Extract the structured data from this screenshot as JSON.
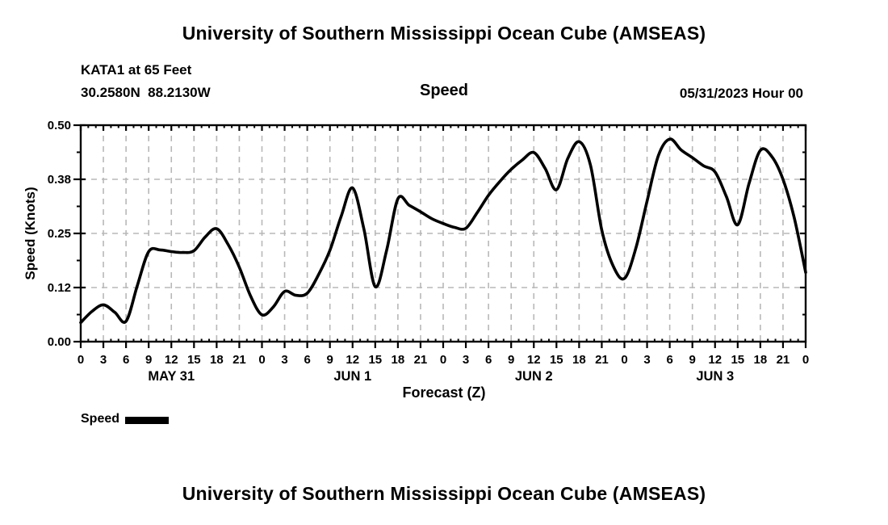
{
  "page": {
    "top_title": "University of Southern Mississippi Ocean Cube (AMSEAS)",
    "bottom_title": "University of Southern Mississippi Ocean Cube (AMSEAS)"
  },
  "header": {
    "station": "KATA1 at 65 Feet",
    "coordinates": "30.2580N  88.2130W",
    "plot_title": "Speed",
    "run_datetime": "05/31/2023 Hour 00"
  },
  "legend": {
    "label": "Speed",
    "swatch_color": "#000000"
  },
  "chart_data": {
    "type": "line",
    "title": "Speed",
    "xlabel": "Forecast (Z)",
    "ylabel": "Speed (Knots)",
    "ylim": [
      0.0,
      0.5
    ],
    "xlim_hours": [
      0,
      96
    ],
    "grid": true,
    "grid_color": "#b8b8b8",
    "line_color": "#000000",
    "frame_color": "#000000",
    "y_ticks": [
      {
        "value": 0.0,
        "label": "0.00"
      },
      {
        "value": 0.125,
        "label": "0.12"
      },
      {
        "value": 0.25,
        "label": "0.25"
      },
      {
        "value": 0.375,
        "label": "0.38"
      },
      {
        "value": 0.5,
        "label": "0.50"
      }
    ],
    "y_minor_step": 0.0625,
    "x_tick_step_hours": 3,
    "x_minor_step_hours": 1,
    "x_tick_labels": [
      "0",
      "3",
      "6",
      "9",
      "12",
      "15",
      "18",
      "21",
      "0",
      "3",
      "6",
      "9",
      "12",
      "15",
      "18",
      "21",
      "0",
      "3",
      "6",
      "9",
      "12",
      "15",
      "18",
      "21",
      "0",
      "3",
      "6",
      "9",
      "12",
      "15",
      "18",
      "21",
      "0"
    ],
    "day_labels": [
      {
        "label": "MAY 31",
        "center_hour": 12
      },
      {
        "label": "JUN 1",
        "center_hour": 36
      },
      {
        "label": "JUN 2",
        "center_hour": 60
      },
      {
        "label": "JUN 3",
        "center_hour": 84
      }
    ],
    "legend_position": "bottom-left",
    "series": [
      {
        "name": "Speed",
        "x_hours": [
          0,
          1.5,
          3,
          4.5,
          6,
          7.5,
          9,
          10.5,
          12,
          13.5,
          15,
          16.5,
          18,
          19.5,
          21,
          22.5,
          24,
          25.5,
          27,
          28.5,
          30,
          31.5,
          33,
          34.5,
          36,
          37.5,
          39,
          40.5,
          42,
          43.5,
          45,
          46.5,
          48,
          49.5,
          51,
          52.5,
          54,
          55.5,
          57,
          58.5,
          60,
          61.5,
          63,
          64.5,
          66,
          67.5,
          69,
          70.5,
          72,
          73.5,
          75,
          76.5,
          78,
          79.5,
          81,
          82.5,
          84,
          85.5,
          87,
          88.5,
          90,
          91.5,
          93,
          94.5,
          96
        ],
        "values": [
          0.044,
          0.07,
          0.085,
          0.068,
          0.047,
          0.13,
          0.208,
          0.212,
          0.208,
          0.206,
          0.21,
          0.242,
          0.261,
          0.225,
          0.172,
          0.105,
          0.062,
          0.08,
          0.116,
          0.107,
          0.112,
          0.155,
          0.211,
          0.29,
          0.355,
          0.26,
          0.127,
          0.21,
          0.33,
          0.315,
          0.3,
          0.284,
          0.273,
          0.264,
          0.262,
          0.298,
          0.338,
          0.37,
          0.398,
          0.42,
          0.437,
          0.4,
          0.351,
          0.423,
          0.462,
          0.408,
          0.258,
          0.175,
          0.146,
          0.215,
          0.325,
          0.43,
          0.468,
          0.443,
          0.425,
          0.406,
          0.392,
          0.335,
          0.27,
          0.365,
          0.442,
          0.428,
          0.375,
          0.285,
          0.16
        ]
      }
    ]
  }
}
